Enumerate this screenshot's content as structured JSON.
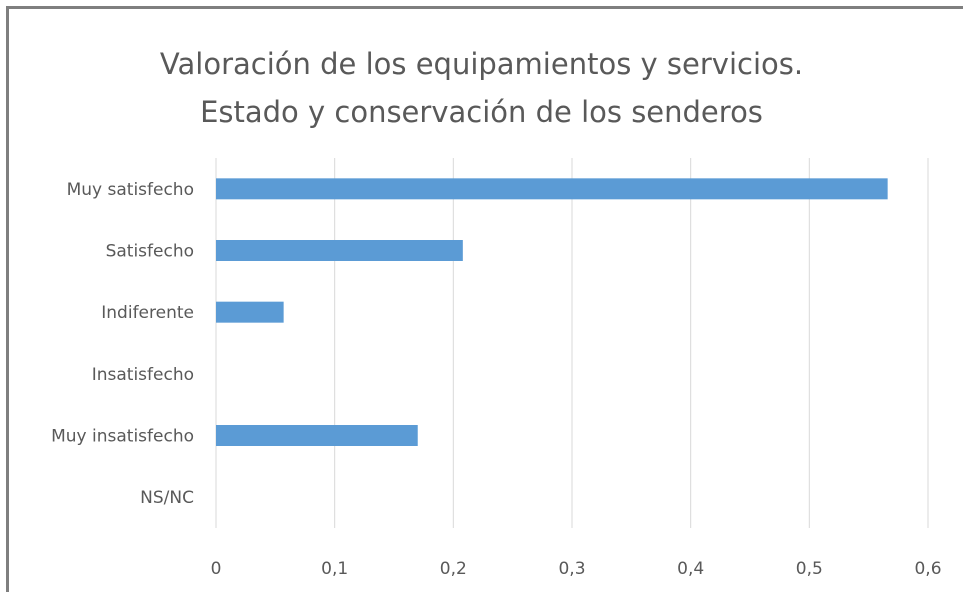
{
  "chart_data": {
    "type": "bar",
    "orientation": "horizontal",
    "title": [
      "Valoración de los equipamientos y servicios.",
      "Estado y conservación de los senderos"
    ],
    "categories": [
      "Muy satisfecho",
      "Satisfecho",
      "Indiferente",
      "Insatisfecho",
      "Muy insatisfecho",
      "NS/NC"
    ],
    "values": [
      0.566,
      0.208,
      0.057,
      0,
      0.17,
      0
    ],
    "xlim": [
      0,
      0.6
    ],
    "xticks": [
      {
        "value": 0,
        "label": "0"
      },
      {
        "value": 0.1,
        "label": "0,1"
      },
      {
        "value": 0.2,
        "label": "0,2"
      },
      {
        "value": 0.3,
        "label": "0,3"
      },
      {
        "value": 0.4,
        "label": "0,4"
      },
      {
        "value": 0.5,
        "label": "0,5"
      },
      {
        "value": 0.6,
        "label": "0,6"
      }
    ],
    "grid": true,
    "legend": "none",
    "bar_color": "#5b9bd5",
    "grid_color": "#d9d9d9",
    "text_color": "#595959"
  }
}
